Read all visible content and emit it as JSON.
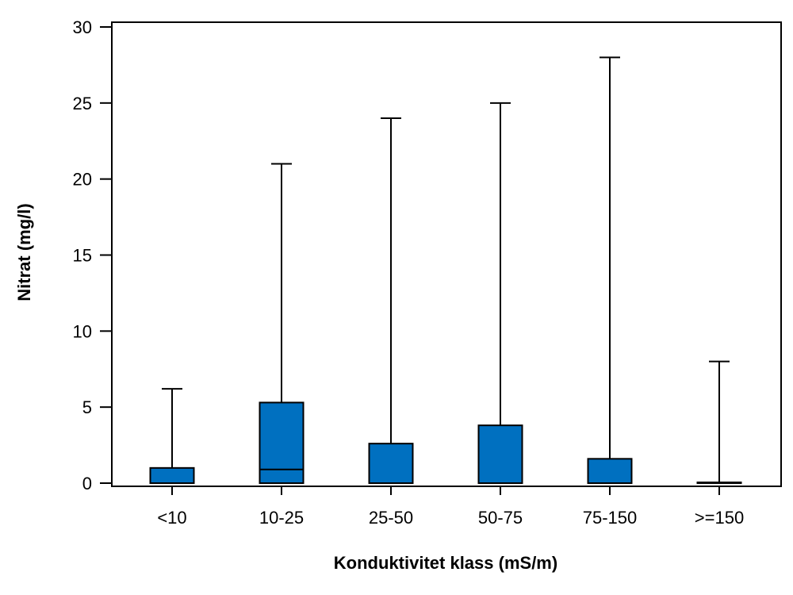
{
  "chart_data": {
    "type": "box",
    "title": "",
    "xlabel": "Konduktivitet klass (mS/m)",
    "ylabel": "Nitrat (mg/l)",
    "ylim": [
      0,
      30
    ],
    "yticks": [
      0,
      5,
      10,
      15,
      20,
      25,
      30
    ],
    "grid": false,
    "box_color": "#0070C0",
    "line_color": "#000000",
    "categories": [
      "<10",
      "10-25",
      "25-50",
      "50-75",
      "75-150",
      ">=150"
    ],
    "boxes": [
      {
        "category": "<10",
        "min": 0,
        "q1": 0,
        "median": 0,
        "q3": 1.0,
        "max": 6.2
      },
      {
        "category": "10-25",
        "min": 0,
        "q1": 0,
        "median": 0.9,
        "q3": 5.3,
        "max": 21
      },
      {
        "category": "25-50",
        "min": 0,
        "q1": 0,
        "median": 0,
        "q3": 2.6,
        "max": 24
      },
      {
        "category": "50-75",
        "min": 0,
        "q1": 0,
        "median": 0,
        "q3": 3.8,
        "max": 25
      },
      {
        "category": "75-150",
        "min": 0,
        "q1": 0,
        "median": 0,
        "q3": 1.6,
        "max": 28
      },
      {
        "category": ">=150",
        "min": 0,
        "q1": 0,
        "median": 0,
        "q3": 0.05,
        "max": 8
      }
    ]
  }
}
